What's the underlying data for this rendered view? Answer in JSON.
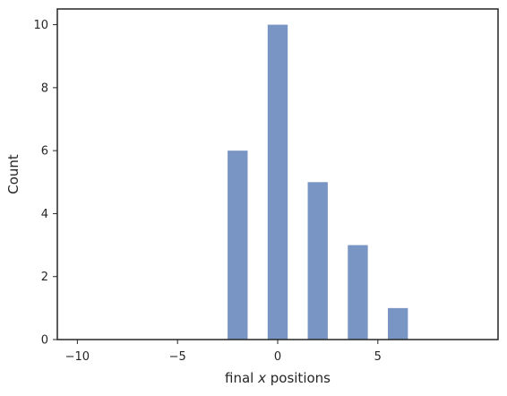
{
  "chart_data": {
    "type": "bar",
    "xlabel_parts": [
      "final ",
      "x",
      " positions"
    ],
    "ylabel": "Count",
    "bins": [
      {
        "x_start": -2.5,
        "x_end": -1.5,
        "count": 6
      },
      {
        "x_start": -0.5,
        "x_end": 0.5,
        "count": 10
      },
      {
        "x_start": 1.5,
        "x_end": 2.5,
        "count": 5
      },
      {
        "x_start": 3.5,
        "x_end": 4.5,
        "count": 3
      },
      {
        "x_start": 5.5,
        "x_end": 6.5,
        "count": 1
      }
    ],
    "xlim": [
      -11,
      11
    ],
    "ylim": [
      0,
      10.5
    ],
    "x_ticks": [
      -10,
      -5,
      0,
      5
    ],
    "x_tick_labels": [
      "−10",
      "−5",
      "0",
      "5"
    ],
    "y_ticks": [
      0,
      2,
      4,
      6,
      8,
      10
    ],
    "y_tick_labels": [
      "0",
      "2",
      "4",
      "6",
      "8",
      "10"
    ],
    "grid": false,
    "colors": {
      "bar": "#4c72b0",
      "axes": "#262626"
    }
  }
}
